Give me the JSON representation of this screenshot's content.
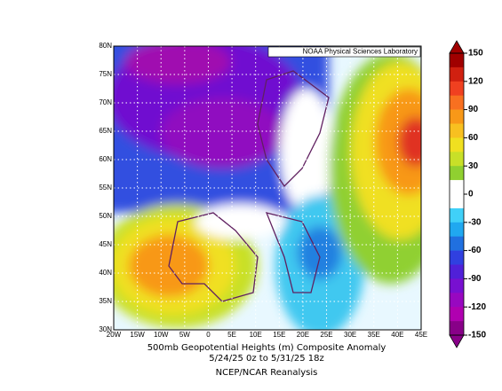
{
  "map": {
    "credit": "NOAA Physical Sciences Laboratory",
    "lat_labels": [
      "80N",
      "75N",
      "70N",
      "65N",
      "60N",
      "55N",
      "50N",
      "45N",
      "40N",
      "35N",
      "30N"
    ],
    "lon_labels": [
      "20W",
      "15W",
      "10W",
      "5W",
      "0",
      "5E",
      "10E",
      "15E",
      "20E",
      "25E",
      "30E",
      "35E",
      "40E",
      "45E"
    ]
  },
  "caption": {
    "line1": "500mb Geopotential Heights (m)    Composite Anomaly",
    "line2": "5/24/25 0z  to 5/31/25 18z",
    "line3": "NCEP/NCAR Reanalysis"
  },
  "colorbar": {
    "ticks": [
      150,
      120,
      90,
      60,
      30,
      0,
      -30,
      -60,
      -90,
      -120,
      -150
    ],
    "colors": [
      "#a00000",
      "#d02010",
      "#f04020",
      "#f87020",
      "#f89818",
      "#f8c020",
      "#f0e020",
      "#c8e028",
      "#90d030",
      "#ffffff",
      "#ffffff",
      "#40d0f8",
      "#20a8f0",
      "#2070e0",
      "#3040e0",
      "#5020d8",
      "#7810d0",
      "#9808c0",
      "#b000b0",
      "#880088"
    ]
  }
}
